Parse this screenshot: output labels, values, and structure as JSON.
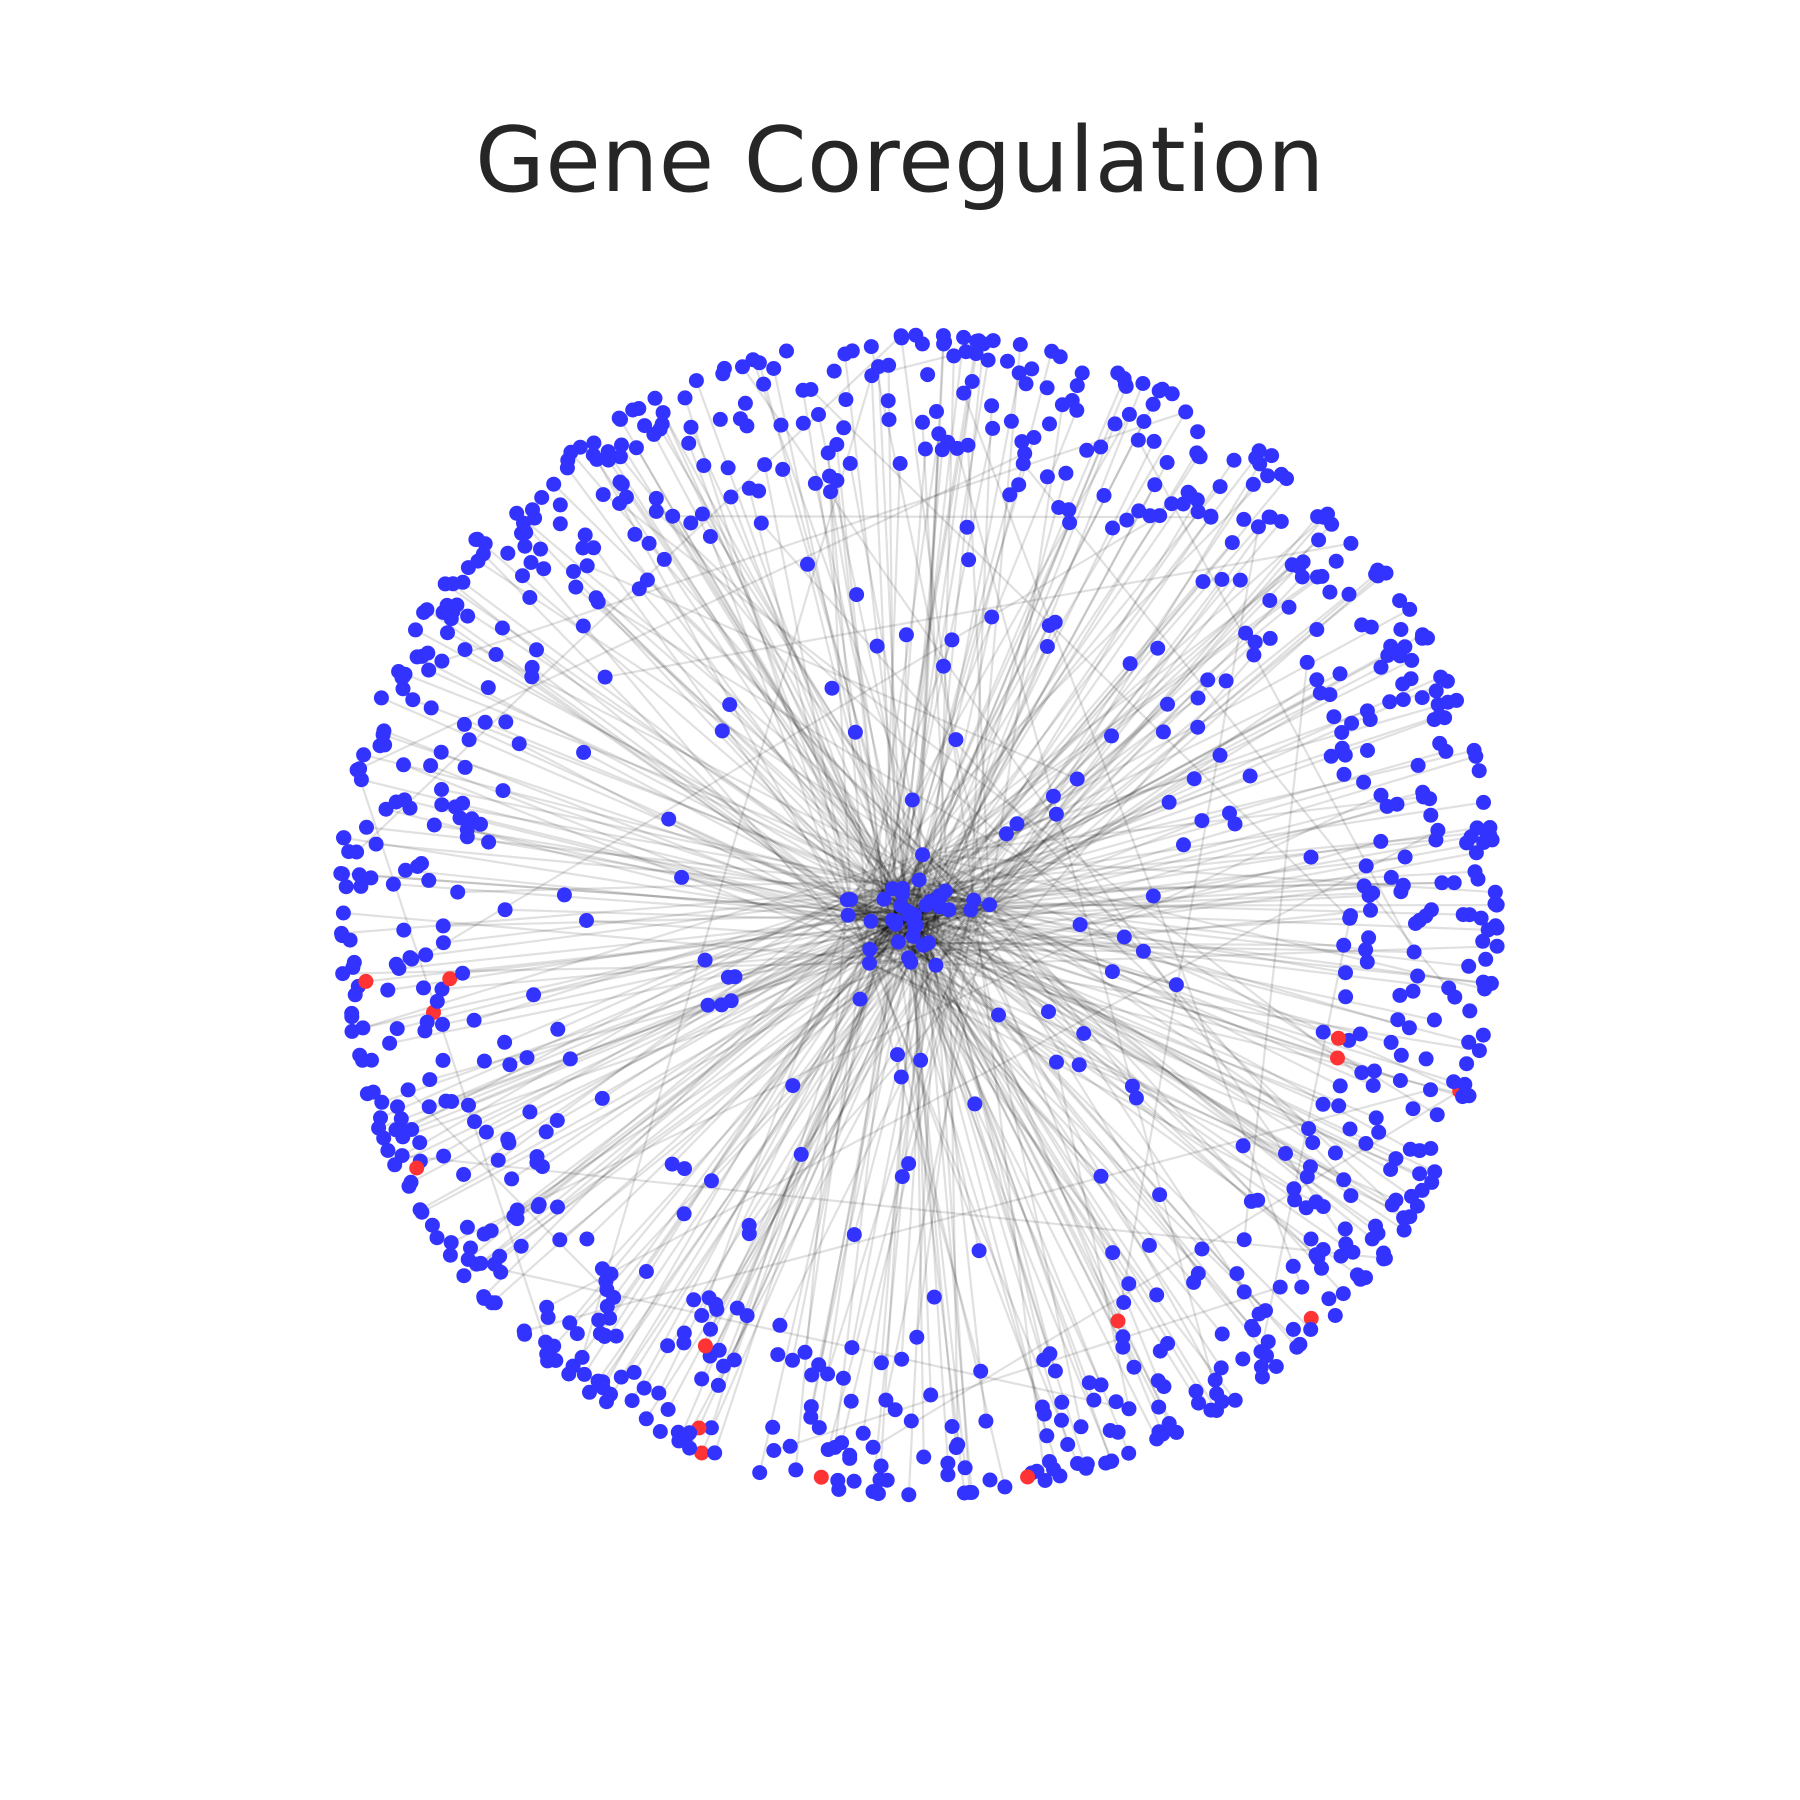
{
  "figure": {
    "title": "Gene Coregulation"
  },
  "network": {
    "node_colors": {
      "regular": "#3333ff",
      "highlighted": "#ff3333"
    },
    "edge_color": "#000000",
    "edge_opacity": 0.12,
    "node_count": 1000,
    "highlighted_node_count": 14
  }
}
